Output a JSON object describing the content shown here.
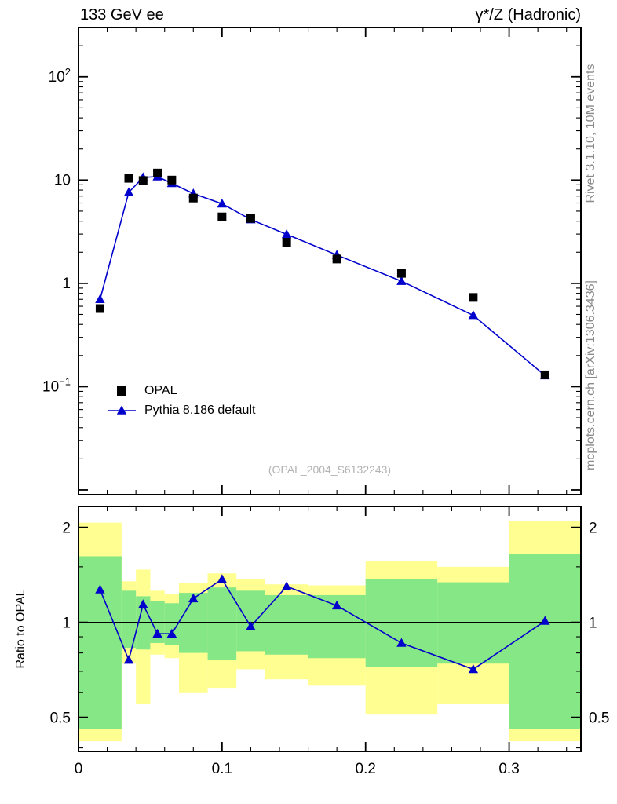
{
  "header": {
    "left": "133 GeV ee",
    "right": "γ*/Z (Hadronic)"
  },
  "side_notes": {
    "top": "Rivet 3.1.10,  10M events",
    "bottom": "mcplots.cern.ch [arXiv:1306.3436]"
  },
  "watermark": "(OPAL_2004_S6132243)",
  "ratio_ylabel": "Ratio to OPAL",
  "legend": [
    {
      "label": "OPAL",
      "marker": "square",
      "color": "#000000"
    },
    {
      "label": "Pythia 8.186 default",
      "marker": "triangle-line",
      "color": "#0000cc"
    }
  ],
  "colors": {
    "mc_line": "#0000cc",
    "data_marker": "#000000",
    "band_outer": "#ffff91",
    "band_inner": "#86e786",
    "frame": "#000000",
    "watermark": "#b3b3b3",
    "side_note": "#8a8a8a"
  },
  "chart_data": [
    {
      "type": "line",
      "panel": "main",
      "title": "",
      "yscale": "log",
      "xlim": [
        0,
        0.35
      ],
      "ylim": [
        0.009,
        300
      ],
      "x": [
        0.015,
        0.035,
        0.045,
        0.055,
        0.065,
        0.08,
        0.1,
        0.12,
        0.145,
        0.18,
        0.225,
        0.275,
        0.325
      ],
      "series": [
        {
          "name": "OPAL",
          "marker": "square",
          "color": "#000000",
          "line": false,
          "values": [
            0.57,
            10.4,
            9.9,
            11.7,
            10.0,
            6.7,
            4.4,
            4.25,
            2.5,
            1.72,
            1.25,
            0.73,
            0.13
          ]
        },
        {
          "name": "Pythia 8.186 default",
          "marker": "triangle",
          "color": "#0000cc",
          "line": true,
          "values": [
            0.7,
            7.6,
            10.6,
            10.8,
            9.3,
            7.4,
            5.9,
            4.15,
            2.98,
            1.88,
            1.05,
            0.49,
            0.128
          ]
        }
      ],
      "yticks": [
        {
          "value": 100,
          "base": "10",
          "exp": "2"
        },
        {
          "value": 10,
          "base": "10",
          "exp": ""
        },
        {
          "value": 1,
          "base": "1",
          "exp": ""
        },
        {
          "value": 0.1,
          "base": "10",
          "exp": "−1"
        }
      ],
      "xticks_major": [
        0,
        0.1,
        0.2,
        0.3
      ],
      "xtick_minor_step": 0.02
    },
    {
      "type": "ratio",
      "panel": "ratio",
      "ylabel": "Ratio to OPAL",
      "yscale": "log",
      "xlim": [
        0,
        0.35
      ],
      "ylim": [
        0.39,
        2.33
      ],
      "x": [
        0.015,
        0.035,
        0.045,
        0.055,
        0.065,
        0.08,
        0.1,
        0.12,
        0.145,
        0.18,
        0.225,
        0.275,
        0.325
      ],
      "values": [
        1.27,
        0.76,
        1.14,
        0.92,
        0.92,
        1.19,
        1.37,
        0.97,
        1.3,
        1.13,
        0.86,
        0.71,
        1.01
      ],
      "bin_edges": [
        0,
        0.03,
        0.04,
        0.05,
        0.06,
        0.07,
        0.09,
        0.11,
        0.13,
        0.16,
        0.2,
        0.25,
        0.3,
        0.35
      ],
      "bands": {
        "outer_color": "#ffff91",
        "inner_color": "#86e786",
        "outer": [
          [
            0.42,
            2.07
          ],
          [
            0.74,
            1.35
          ],
          [
            0.55,
            1.47
          ],
          [
            0.79,
            1.26
          ],
          [
            0.77,
            1.23
          ],
          [
            0.6,
            1.33
          ],
          [
            0.62,
            1.43
          ],
          [
            0.71,
            1.37
          ],
          [
            0.66,
            1.32
          ],
          [
            0.63,
            1.31
          ],
          [
            0.51,
            1.56
          ],
          [
            0.55,
            1.5
          ],
          [
            0.42,
            2.1
          ]
        ],
        "inner": [
          [
            0.46,
            1.62
          ],
          [
            0.83,
            1.26
          ],
          [
            0.82,
            1.21
          ],
          [
            0.86,
            1.17
          ],
          [
            0.85,
            1.15
          ],
          [
            0.8,
            1.24
          ],
          [
            0.76,
            1.29
          ],
          [
            0.81,
            1.26
          ],
          [
            0.79,
            1.22
          ],
          [
            0.77,
            1.22
          ],
          [
            0.72,
            1.37
          ],
          [
            0.74,
            1.34
          ],
          [
            0.46,
            1.65
          ]
        ]
      },
      "reference_line": 1,
      "yticks": [
        {
          "value": 0.5,
          "label": "0.5"
        },
        {
          "value": 1,
          "label": "1"
        },
        {
          "value": 2,
          "label": "2"
        }
      ],
      "yticks_minor": [
        0.4,
        0.6,
        0.7,
        0.8,
        0.9,
        1.5
      ],
      "xticks": [
        {
          "value": 0,
          "label": "0"
        },
        {
          "value": 0.1,
          "label": "0.1"
        },
        {
          "value": 0.2,
          "label": "0.2"
        },
        {
          "value": 0.3,
          "label": "0.3"
        }
      ],
      "xtick_minor_step": 0.02
    }
  ]
}
